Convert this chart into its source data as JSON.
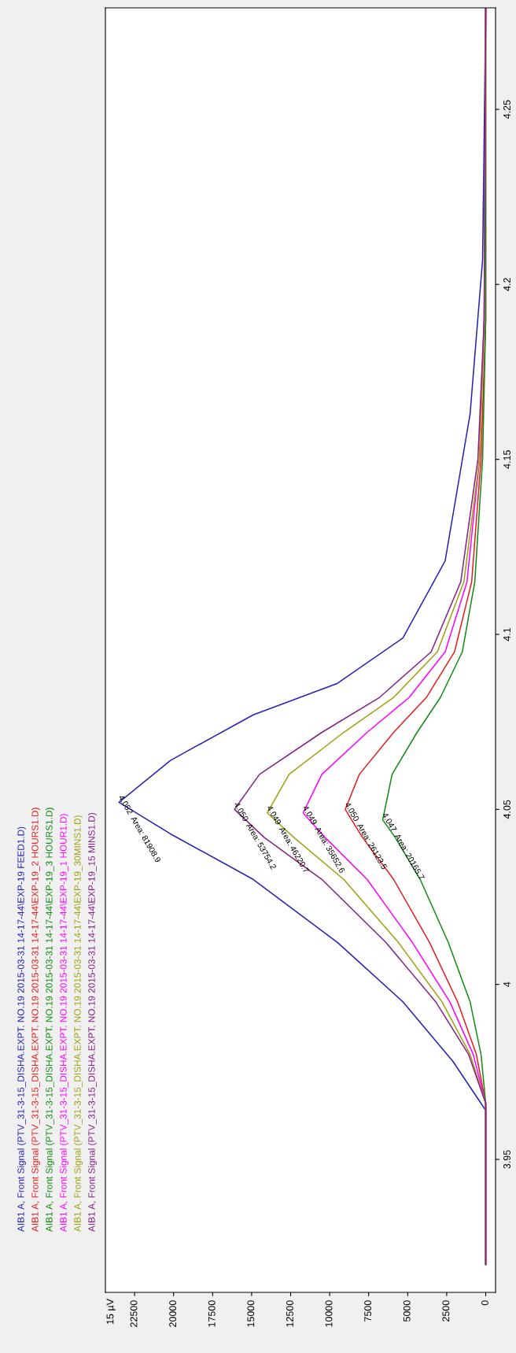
{
  "chart_data": {
    "type": "line",
    "orientation": "horizontal",
    "ylabel": "15 µV",
    "legend": "bottom left",
    "grid": false,
    "marker": "none",
    "line_style": "solid",
    "ylim": [
      3.912,
      4.279
    ],
    "yticks": [
      3.95,
      4,
      4.05,
      4.1,
      4.15,
      4.2,
      4.25
    ],
    "xlim": [
      24370,
      -630
    ],
    "xticks": [
      22500,
      20000,
      17500,
      15000,
      12500,
      10000,
      7500,
      5000,
      2500,
      0
    ],
    "series": [
      {
        "name": "AIB1 A, Front Signal (PTV_31-3-15_DISHA.EXPT. NO.19 2015-03-31 14-17-44\\EXP-19 FEED1.D)",
        "color": "#2323b4",
        "x": [
          3.92,
          3.964,
          3.978,
          3.995,
          4.012,
          4.03,
          4.043,
          4.052,
          4.064,
          4.077,
          4.086,
          4.099,
          4.121,
          4.163,
          4.207,
          4.279
        ],
        "values": [
          0,
          0,
          2100,
          5300,
          9500,
          14900,
          20200,
          23500,
          20200,
          14900,
          9500,
          5300,
          2600,
          1000,
          200,
          0
        ]
      },
      {
        "name": "AIB1 A, Front Signal (PTV_31-3-15_DISHA.EXPT. NO.19 2015-03-31 14-17-44\\EXP-19_2 HOURS1.D)",
        "color": "#e02020",
        "x": [
          3.92,
          3.966,
          3.98,
          3.995,
          4.012,
          4.03,
          4.042,
          4.05,
          4.06,
          4.072,
          4.082,
          4.095,
          4.115,
          4.15,
          4.19,
          4.279
        ],
        "values": [
          0,
          0,
          600,
          1800,
          3600,
          5900,
          7900,
          9000,
          8100,
          5900,
          3800,
          2000,
          900,
          300,
          0,
          0
        ]
      },
      {
        "name": "AIB1 A, Front Signal (PTV_31-3-15_DISHA.EXPT. NO.19 2015-03-31 14-17-44\\EXP-19_3 HOURS1.D)",
        "color": "#138a13",
        "x": [
          3.92,
          3.966,
          3.98,
          3.995,
          4.012,
          4.03,
          4.042,
          4.047,
          4.06,
          4.072,
          4.082,
          4.095,
          4.115,
          4.15,
          4.19,
          4.279
        ],
        "values": [
          0,
          0,
          300,
          1000,
          2400,
          4200,
          5800,
          6600,
          6000,
          4400,
          2900,
          1500,
          700,
          200,
          0,
          0
        ]
      },
      {
        "name": "AIB1 A, Front Signal (PTV_31-3-15_DISHA.EXPT. NO.19 2015-03-31 14-17-44\\EXP-19_1 HOUR1.D)",
        "color": "#ff00ff",
        "x": [
          3.92,
          3.966,
          3.98,
          3.995,
          4.012,
          4.03,
          4.042,
          4.049,
          4.06,
          4.072,
          4.082,
          4.095,
          4.115,
          4.15,
          4.19,
          4.279
        ],
        "values": [
          0,
          0,
          800,
          2300,
          4700,
          7600,
          10300,
          11700,
          10500,
          7600,
          4900,
          2600,
          1200,
          400,
          100,
          0
        ]
      },
      {
        "name": "AIB1 A, Front Signal (PTV_31-3-15_DISHA.EXPT. NO.19 2015-03-31 14-17-44\\EXP-19_30MINS1.D)",
        "color": "#a0a010",
        "x": [
          3.92,
          3.966,
          3.98,
          3.995,
          4.012,
          4.03,
          4.042,
          4.049,
          4.06,
          4.072,
          4.082,
          4.095,
          4.115,
          4.15,
          4.19,
          4.279
        ],
        "values": [
          0,
          0,
          1000,
          2800,
          5600,
          9100,
          12300,
          14000,
          12600,
          9100,
          5900,
          3100,
          1400,
          400,
          100,
          0
        ]
      },
      {
        "name": "AIB1 A, Front Signal (PTV_31-3-15_DISHA.EXPT. NO.19 2015-03-31 14-17-44\\EXP-19_15 MINS1.D)",
        "color": "#852285",
        "x": [
          3.92,
          3.966,
          3.98,
          3.995,
          4.012,
          4.03,
          4.042,
          4.05,
          4.06,
          4.072,
          4.082,
          4.095,
          4.115,
          4.15,
          4.19,
          4.279
        ],
        "values": [
          0,
          0,
          1100,
          3200,
          6400,
          10500,
          14200,
          16100,
          14500,
          10500,
          6800,
          3500,
          1600,
          500,
          100,
          0
        ]
      }
    ],
    "annotations": [
      "4.052  Area: 81908.9",
      "4.050  Area: 26123.5",
      "4.047  Area: 20165.7",
      "4.049  Area: 35652.6",
      "4.049  Area: 46220.7",
      "4.050  Area: 53754.2"
    ]
  }
}
